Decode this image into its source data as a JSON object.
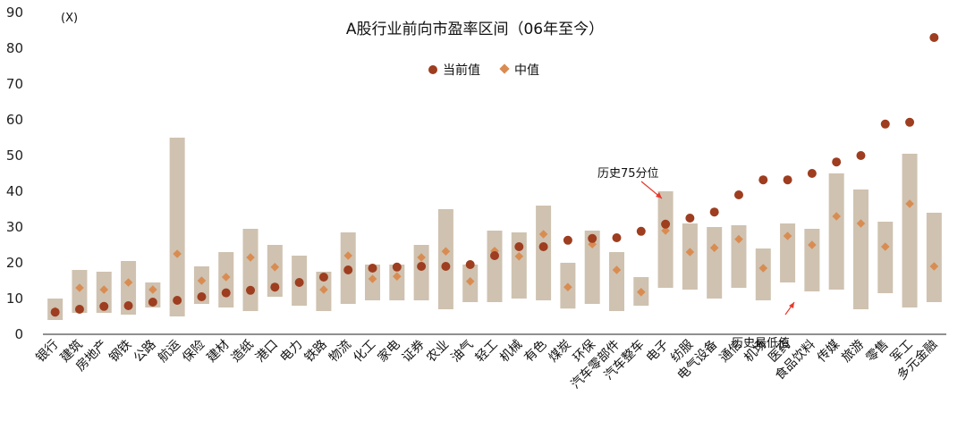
{
  "chart_data": {
    "type": "range-dot",
    "title": "A股行业前向市盈率区间（06年至今）",
    "y_unit_label": "(X)",
    "ylim": [
      0,
      90
    ],
    "yticks": [
      0,
      10,
      20,
      30,
      40,
      50,
      60,
      70,
      80,
      90
    ],
    "legend": {
      "placement": "top-center",
      "current_label": "当前值",
      "median_label": "中值"
    },
    "colors": {
      "range_bar": "#cfc2b0",
      "current": "#9e3d1f",
      "median": "#d98c52",
      "annotation_arrow": "#e8392b"
    },
    "annotations": {
      "high_label": "历史75分位",
      "low_label": "历史最低值"
    },
    "categories": [
      "银行",
      "建筑",
      "房地产",
      "钢铁",
      "公路",
      "航运",
      "保险",
      "建材",
      "造纸",
      "港口",
      "电力",
      "铁路",
      "物流",
      "化工",
      "家电",
      "证券",
      "农业",
      "油气",
      "轻工",
      "机械",
      "有色",
      "煤炭",
      "环保",
      "汽车零部件",
      "汽车整车",
      "电子",
      "纺服",
      "电气设备",
      "通信",
      "机场",
      "医药",
      "食品饮料",
      "传媒",
      "旅游",
      "零售",
      "军工",
      "多元金融"
    ],
    "series": [
      {
        "name": "当前值",
        "values": [
          6.2,
          7,
          7.8,
          8,
          9,
          9.5,
          10.5,
          11.6,
          12.3,
          13.2,
          14.5,
          16,
          18,
          18.5,
          18.8,
          19,
          19,
          19.5,
          22,
          24.5,
          24.5,
          26.3,
          26.8,
          27,
          28.8,
          30.8,
          32.5,
          34.2,
          39,
          43.2,
          43.2,
          45,
          48.2,
          50,
          58.8,
          59.3,
          83
        ]
      },
      {
        "name": "中值",
        "values": [
          6.5,
          13,
          12.5,
          14.5,
          12.5,
          22.5,
          15,
          16,
          21.5,
          18.8,
          14.5,
          12.5,
          22,
          15.5,
          16.2,
          21.5,
          23.2,
          14.8,
          23.3,
          21.8,
          28,
          13.2,
          25.2,
          18,
          11.8,
          29,
          23,
          24.2,
          26.6,
          18.5,
          27.5,
          25,
          33,
          31,
          24.5,
          36.5,
          19
        ]
      },
      {
        "name": "历史最低值",
        "values": [
          4,
          6,
          6,
          5.5,
          7.5,
          5,
          8.5,
          7.5,
          6.5,
          10.5,
          8,
          6.5,
          8.5,
          9.5,
          9.5,
          9.5,
          7,
          9,
          9,
          10,
          9.5,
          7.2,
          8.5,
          6.5,
          8,
          13,
          12.5,
          10,
          13,
          9.5,
          14.5,
          12,
          12.5,
          7,
          11.5,
          7.5,
          9
        ]
      },
      {
        "name": "历史75分位",
        "values": [
          10,
          18,
          17.5,
          20.5,
          14.5,
          55,
          19,
          23,
          29.5,
          25,
          22,
          17.5,
          28.5,
          19.5,
          19.5,
          25,
          35,
          19.5,
          29,
          28.5,
          36,
          20,
          29,
          23,
          16,
          40,
          31,
          30,
          30.5,
          24,
          31,
          29.5,
          45,
          40.5,
          31.5,
          50.5,
          34
        ]
      }
    ]
  }
}
